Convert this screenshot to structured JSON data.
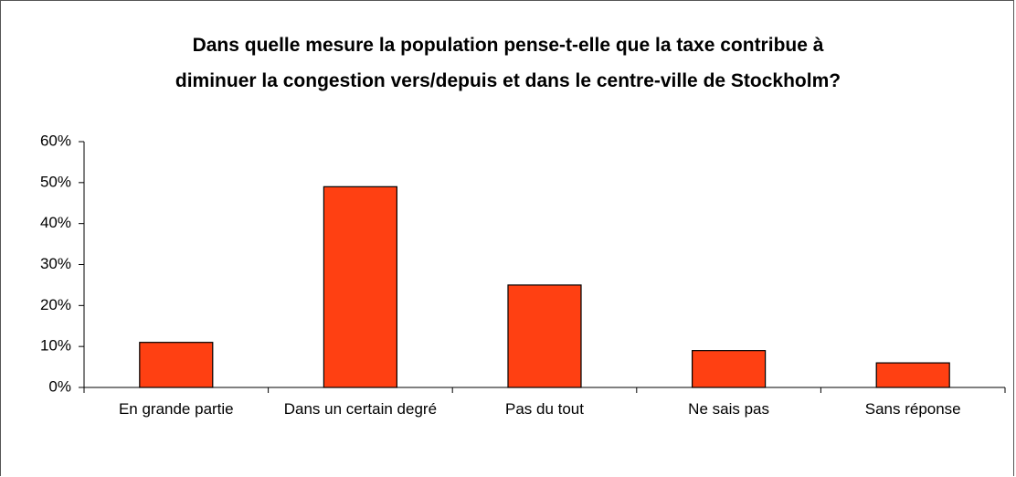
{
  "chart_data": {
    "type": "bar",
    "title": "Dans quelle mesure la population pense-t-elle que la taxe contribue à\ndiminuer la congestion vers/depuis et dans le centre-ville de Stockholm?",
    "categories": [
      "En grande partie",
      "Dans un certain degré",
      "Pas du tout",
      "Ne sais pas",
      "Sans réponse"
    ],
    "values": [
      11,
      49,
      25,
      9,
      6
    ],
    "color": "#ff4012",
    "ylim": [
      0,
      60
    ],
    "yticks": [
      {
        "value": 0,
        "label": "0%"
      },
      {
        "value": 10,
        "label": "10%"
      },
      {
        "value": 20,
        "label": "20%"
      },
      {
        "value": 30,
        "label": "30%"
      },
      {
        "value": 40,
        "label": "40%"
      },
      {
        "value": 50,
        "label": "50%"
      },
      {
        "value": 60,
        "label": "60%"
      }
    ],
    "grid": false
  }
}
